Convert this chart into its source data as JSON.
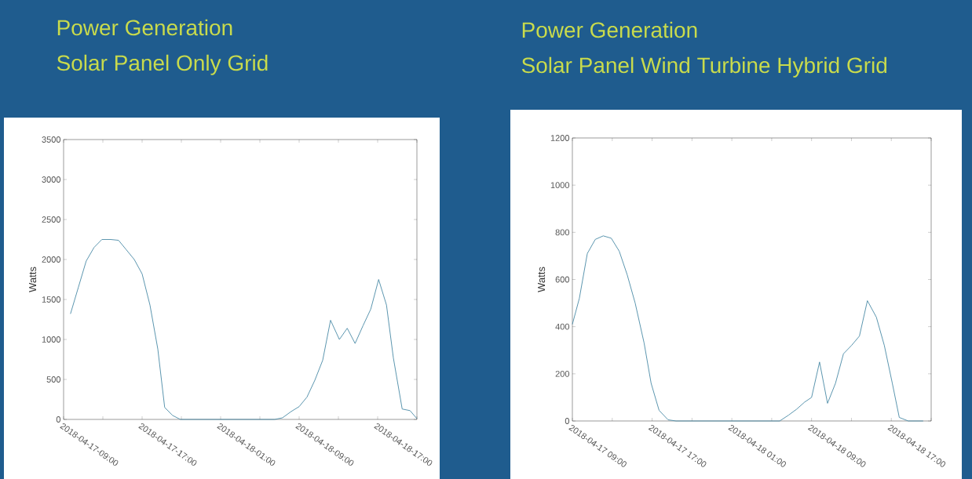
{
  "chart_data": [
    {
      "type": "line",
      "title": "Power Generation",
      "subtitle": "Solar Panel Only Grid",
      "ylabel": "Watts",
      "color": "#4a8aa6",
      "x": [
        "2018-04-17T09:42",
        "2018-04-17T10:30",
        "2018-04-17T11:18",
        "2018-04-17T12:06",
        "2018-04-17T12:54",
        "2018-04-17T13:48",
        "2018-04-17T14:36",
        "2018-04-17T15:24",
        "2018-04-17T16:12",
        "2018-04-17T17:00",
        "2018-04-17T17:48",
        "2018-04-17T18:36",
        "2018-04-17T19:18",
        "2018-04-17T20:06",
        "2018-04-17T20:54",
        "2018-04-18T06:30",
        "2018-04-18T07:18",
        "2018-04-18T08:12",
        "2018-04-18T09:00",
        "2018-04-18T09:48",
        "2018-04-18T10:36",
        "2018-04-18T11:24",
        "2018-04-18T12:12",
        "2018-04-18T13:06",
        "2018-04-18T13:54",
        "2018-04-18T14:42",
        "2018-04-18T15:30",
        "2018-04-18T16:18",
        "2018-04-18T17:06",
        "2018-04-18T17:54",
        "2018-04-18T18:36",
        "2018-04-18T19:30",
        "2018-04-18T20:18",
        "2018-04-18T21:00"
      ],
      "values": [
        1320,
        1650,
        1980,
        2150,
        2250,
        2250,
        2240,
        2120,
        2000,
        1820,
        1430,
        880,
        150,
        50,
        0,
        0,
        20,
        100,
        160,
        280,
        490,
        740,
        1240,
        1000,
        1140,
        950,
        1170,
        1380,
        1750,
        1430,
        770,
        130,
        110,
        10
      ],
      "xlim": [
        "2018-04-17T09:00",
        "2018-04-18T21:00"
      ],
      "xticks": [
        {
          "value": "2018-04-17T09:00",
          "label": "2018-04-17-09:00"
        },
        {
          "value": "2018-04-17T13:00",
          "label": null
        },
        {
          "value": "2018-04-17T17:00",
          "label": "2018-04-17-17:00"
        },
        {
          "value": "2018-04-17T21:00",
          "label": null
        },
        {
          "value": "2018-04-18T01:00",
          "label": "2018-04-18-01:00"
        },
        {
          "value": "2018-04-18T05:00",
          "label": null
        },
        {
          "value": "2018-04-18T09:00",
          "label": "2018-04-18-09:00"
        },
        {
          "value": "2018-04-18T13:00",
          "label": null
        },
        {
          "value": "2018-04-18T17:00",
          "label": "2018-04-18-17:00"
        },
        {
          "value": "2018-04-18T21:00",
          "label": null
        }
      ],
      "ylim": [
        0,
        3500
      ],
      "yticks": [
        0,
        500,
        1000,
        1500,
        2000,
        2500,
        3000,
        3500
      ]
    },
    {
      "type": "line",
      "title": "Power Generation",
      "subtitle": "Solar Panel Wind Turbine Hybrid  Grid",
      "ylabel": "Watts",
      "color": "#4a8aa6",
      "x": [
        "2018-04-17T09:00",
        "2018-04-17T09:42",
        "2018-04-17T10:30",
        "2018-04-17T11:18",
        "2018-04-17T12:06",
        "2018-04-17T12:54",
        "2018-04-17T13:42",
        "2018-04-17T14:30",
        "2018-04-17T15:18",
        "2018-04-17T16:12",
        "2018-04-17T16:54",
        "2018-04-17T17:42",
        "2018-04-17T18:36",
        "2018-04-17T19:24",
        "2018-04-18T05:48",
        "2018-04-18T06:42",
        "2018-04-18T07:30",
        "2018-04-18T08:18",
        "2018-04-18T09:00",
        "2018-04-18T09:48",
        "2018-04-18T10:36",
        "2018-04-18T11:24",
        "2018-04-18T12:12",
        "2018-04-18T13:00",
        "2018-04-18T13:48",
        "2018-04-18T14:36",
        "2018-04-18T15:30",
        "2018-04-18T16:18",
        "2018-04-18T17:06",
        "2018-04-18T17:48",
        "2018-04-18T18:42",
        "2018-04-18T20:12"
      ],
      "values": [
        410,
        520,
        710,
        770,
        785,
        775,
        720,
        620,
        500,
        330,
        160,
        45,
        5,
        0,
        0,
        25,
        50,
        80,
        100,
        250,
        75,
        160,
        285,
        320,
        360,
        510,
        440,
        320,
        160,
        15,
        0,
        0
      ],
      "xlim": [
        "2018-04-17T09:00",
        "2018-04-18T21:00"
      ],
      "xticks": [
        {
          "value": "2018-04-17T09:00",
          "label": "2018-04-17 09:00"
        },
        {
          "value": "2018-04-17T13:00",
          "label": null
        },
        {
          "value": "2018-04-17T17:00",
          "label": "2018-04-17 17:00"
        },
        {
          "value": "2018-04-17T21:00",
          "label": null
        },
        {
          "value": "2018-04-18T01:00",
          "label": "2018-04-18 01:00"
        },
        {
          "value": "2018-04-18T05:00",
          "label": null
        },
        {
          "value": "2018-04-18T09:00",
          "label": "2018-04-18 09:00"
        },
        {
          "value": "2018-04-18T13:00",
          "label": null
        },
        {
          "value": "2018-04-18T17:00",
          "label": "2018-04-18 17:00"
        },
        {
          "value": "2018-04-18T21:00",
          "label": null
        }
      ],
      "ylim": [
        0,
        1200
      ],
      "yticks": [
        0,
        200,
        400,
        600,
        800,
        1000,
        1200
      ]
    }
  ]
}
